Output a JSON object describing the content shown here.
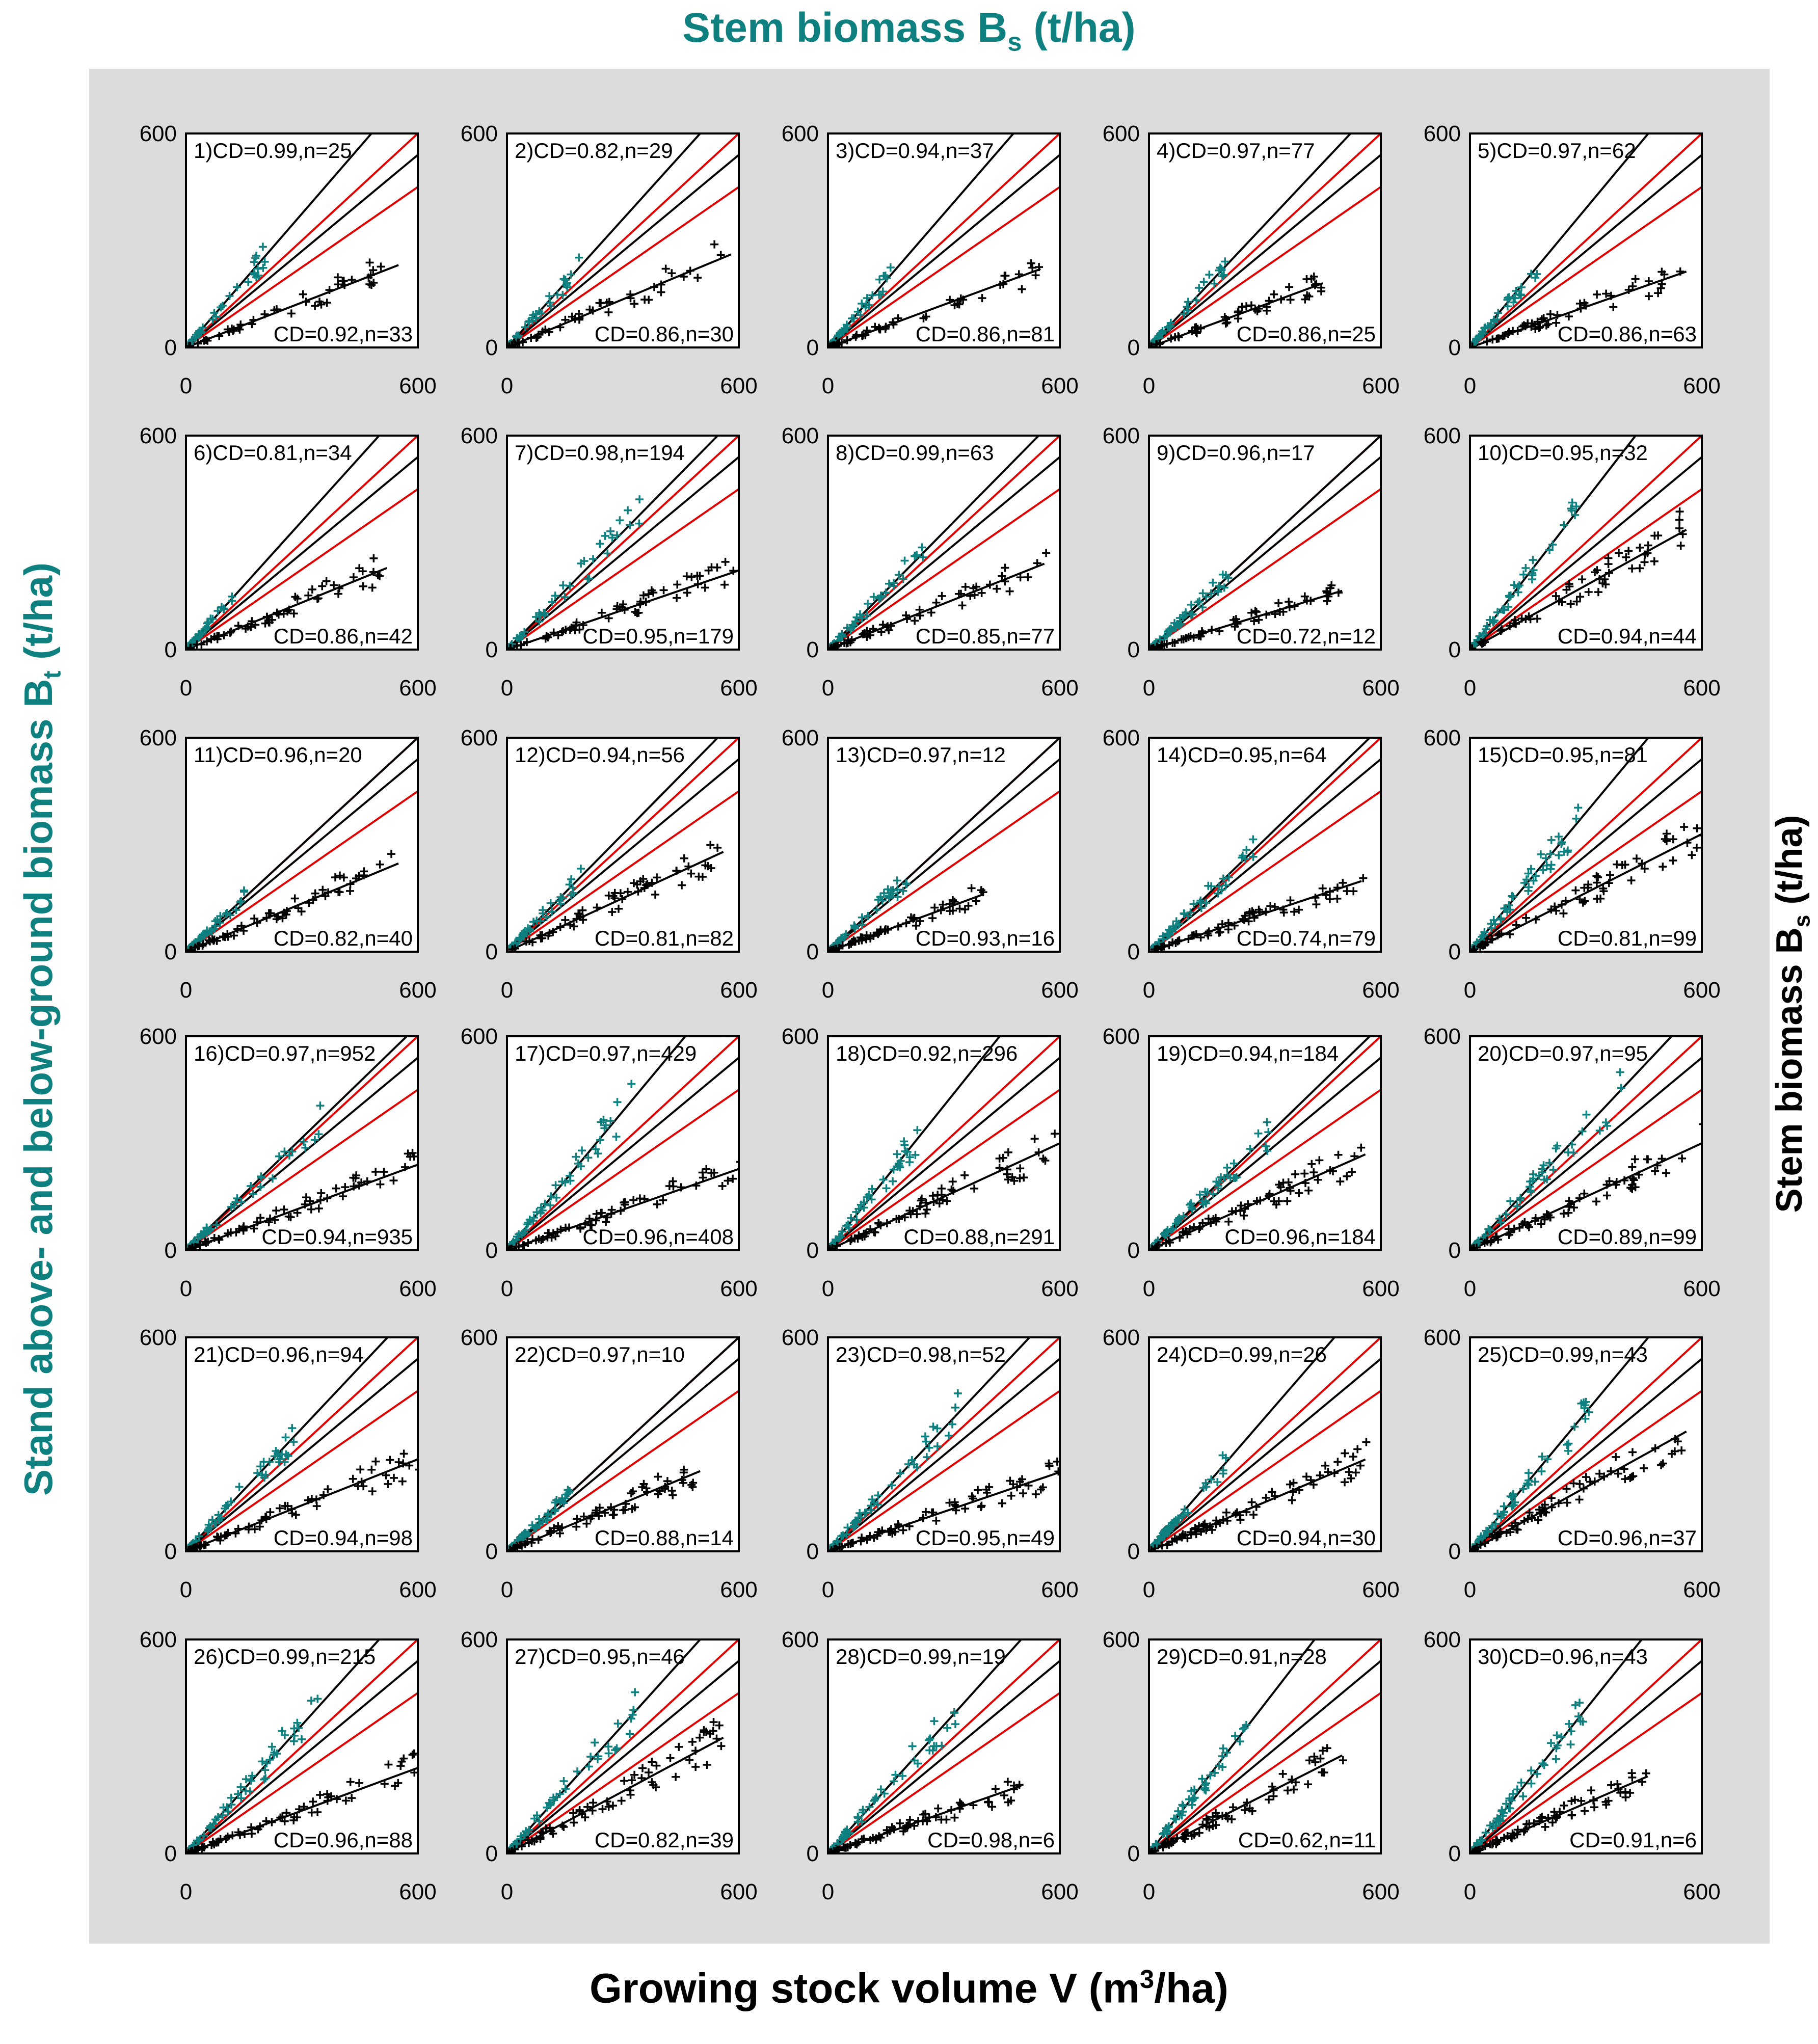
{
  "titles": {
    "top_main": "Stem biomass B",
    "top_sub": "s",
    "top_unit": " (t/ha)",
    "left_main": "Stand above- and below-ground biomass B",
    "left_sub": "t",
    "left_unit": " (t/ha)",
    "right_main": "Stem biomass B",
    "right_sub": "s",
    "right_unit": " (t/ha)",
    "bottom_main": "Growing stock volume V (m",
    "bottom_sup": "3",
    "bottom_unit": "/ha)"
  },
  "colors": {
    "background_panel": "#dcdcdc",
    "teal": "#0e8080",
    "black": "#000000",
    "red": "#e00000",
    "plot_bg": "#ffffff"
  },
  "chart_data": {
    "type": "scatter",
    "axis": {
      "xlim": [
        0,
        600
      ],
      "ylim": [
        0,
        600
      ],
      "x_ticks": [
        "0",
        "600"
      ],
      "y_ticks": [
        "0",
        "600"
      ]
    },
    "reference_lines": [
      {
        "color": "red",
        "slope": 1.0
      },
      {
        "color": "red",
        "slope": 0.75
      },
      {
        "color": "black",
        "slope": 0.9
      }
    ],
    "panels": [
      {
        "id": 1,
        "label_top": "1)CD=0.99,n=25",
        "label_bottom": "CD=0.92,n=33",
        "teal_slope": 1.25,
        "black_slope": 0.42,
        "teal_max": 250,
        "black_max": 550
      },
      {
        "id": 2,
        "label_top": "2)CD=0.82,n=29",
        "label_bottom": "CD=0.86,n=30",
        "teal_slope": 1.2,
        "black_slope": 0.45,
        "teal_max": 220,
        "black_max": 580
      },
      {
        "id": 3,
        "label_top": "3)CD=0.94,n=37",
        "label_bottom": "CD=0.86,n=81",
        "teal_slope": 1.25,
        "black_slope": 0.4,
        "teal_max": 200,
        "black_max": 550
      },
      {
        "id": 4,
        "label_top": "4)CD=0.97,n=77",
        "label_bottom": "CD=0.86,n=25",
        "teal_slope": 1.15,
        "black_slope": 0.4,
        "teal_max": 230,
        "black_max": 450
      },
      {
        "id": 5,
        "label_top": "5)CD=0.97,n=62",
        "label_bottom": "CD=0.86,n=63",
        "teal_slope": 1.3,
        "black_slope": 0.38,
        "teal_max": 230,
        "black_max": 560
      },
      {
        "id": 6,
        "label_top": "6)CD=0.81,n=34",
        "label_bottom": "CD=0.86,n=42",
        "teal_slope": 1.2,
        "black_slope": 0.44,
        "teal_max": 140,
        "black_max": 520
      },
      {
        "id": 7,
        "label_top": "7)CD=0.98,n=194",
        "label_bottom": "CD=0.95,n=179",
        "teal_slope": 1.1,
        "black_slope": 0.37,
        "teal_max": 380,
        "black_max": 600
      },
      {
        "id": 8,
        "label_top": "8)CD=0.99,n=63",
        "label_bottom": "CD=0.85,n=77",
        "teal_slope": 1.1,
        "black_slope": 0.43,
        "teal_max": 290,
        "black_max": 560
      },
      {
        "id": 9,
        "label_top": "9)CD=0.96,n=17",
        "label_bottom": "CD=0.72,n=12",
        "teal_slope": 1.0,
        "black_slope": 0.33,
        "teal_max": 200,
        "black_max": 500
      },
      {
        "id": 10,
        "label_top": "10)CD=0.95,n=32",
        "label_bottom": "CD=0.94,n=44",
        "teal_slope": 1.4,
        "black_slope": 0.6,
        "teal_max": 400,
        "black_max": 560
      },
      {
        "id": 11,
        "label_top": "11)CD=0.96,n=20",
        "label_bottom": "CD=0.82,n=40",
        "teal_slope": 1.0,
        "black_slope": 0.45,
        "teal_max": 150,
        "black_max": 550
      },
      {
        "id": 12,
        "label_top": "12)CD=0.94,n=56",
        "label_bottom": "CD=0.81,n=82",
        "teal_slope": 1.1,
        "black_slope": 0.5,
        "teal_max": 230,
        "black_max": 560
      },
      {
        "id": 13,
        "label_top": "13)CD=0.97,n=12",
        "label_bottom": "CD=0.93,n=16",
        "teal_slope": 1.0,
        "black_slope": 0.4,
        "teal_max": 200,
        "black_max": 400
      },
      {
        "id": 14,
        "label_top": "14)CD=0.95,n=64",
        "label_bottom": "CD=0.74,n=79",
        "teal_slope": 1.05,
        "black_slope": 0.36,
        "teal_max": 300,
        "black_max": 550
      },
      {
        "id": 15,
        "label_top": "15)CD=0.95,n=81",
        "label_bottom": "CD=0.81,n=99",
        "teal_slope": 1.3,
        "black_slope": 0.55,
        "teal_max": 360,
        "black_max": 600
      },
      {
        "id": 16,
        "label_top": "16)CD=0.97,n=952",
        "label_bottom": "CD=0.94,n=935",
        "teal_slope": 1.05,
        "black_slope": 0.4,
        "teal_max": 360,
        "black_max": 600
      },
      {
        "id": 17,
        "label_top": "17)CD=0.97,n=429",
        "label_bottom": "CD=0.96,n=408",
        "teal_slope": 1.3,
        "black_slope": 0.38,
        "teal_max": 430,
        "black_max": 600
      },
      {
        "id": 18,
        "label_top": "18)CD=0.92,n=296",
        "label_bottom": "CD=0.88,n=291",
        "teal_slope": 1.35,
        "black_slope": 0.5,
        "teal_max": 310,
        "black_max": 600
      },
      {
        "id": 19,
        "label_top": "19)CD=0.94,n=184",
        "label_bottom": "CD=0.96,n=184",
        "teal_slope": 1.05,
        "black_slope": 0.48,
        "teal_max": 320,
        "black_max": 560
      },
      {
        "id": 20,
        "label_top": "20)CD=0.97,n=95",
        "label_bottom": "CD=0.89,n=99",
        "teal_slope": 1.15,
        "black_slope": 0.5,
        "teal_max": 450,
        "black_max": 600
      },
      {
        "id": 21,
        "label_top": "21)CD=0.96,n=94",
        "label_bottom": "CD=0.94,n=98",
        "teal_slope": 1.15,
        "black_slope": 0.43,
        "teal_max": 330,
        "black_max": 600
      },
      {
        "id": 22,
        "label_top": "22)CD=0.97,n=10",
        "label_bottom": "CD=0.88,n=14",
        "teal_slope": 1.0,
        "black_slope": 0.45,
        "teal_max": 160,
        "black_max": 500
      },
      {
        "id": 23,
        "label_top": "23)CD=0.98,n=52",
        "label_bottom": "CD=0.95,n=49",
        "teal_slope": 1.15,
        "black_slope": 0.37,
        "teal_max": 390,
        "black_max": 600
      },
      {
        "id": 24,
        "label_top": "24)CD=0.99,n=26",
        "label_bottom": "CD=0.94,n=30",
        "teal_slope": 1.25,
        "black_slope": 0.46,
        "teal_max": 260,
        "black_max": 560
      },
      {
        "id": 25,
        "label_top": "25)CD=0.99,n=43",
        "label_bottom": "CD=0.96,n=37",
        "teal_slope": 1.3,
        "black_slope": 0.6,
        "teal_max": 400,
        "black_max": 560
      },
      {
        "id": 26,
        "label_top": "26)CD=0.99,n=215",
        "label_bottom": "CD=0.96,n=88",
        "teal_slope": 1.2,
        "black_slope": 0.4,
        "teal_max": 430,
        "black_max": 600
      },
      {
        "id": 27,
        "label_top": "27)CD=0.95,n=46",
        "label_bottom": "CD=0.82,n=39",
        "teal_slope": 1.2,
        "black_slope": 0.58,
        "teal_max": 400,
        "black_max": 560
      },
      {
        "id": 28,
        "label_top": "28)CD=0.99,n=19",
        "label_bottom": "CD=0.98,n=6",
        "teal_slope": 1.2,
        "black_slope": 0.38,
        "teal_max": 400,
        "black_max": 500
      },
      {
        "id": 29,
        "label_top": "29)CD=0.91,n=28",
        "label_bottom": "CD=0.62,n=11",
        "teal_slope": 1.4,
        "black_slope": 0.55,
        "teal_max": 350,
        "black_max": 500
      },
      {
        "id": 30,
        "label_top": "30)CD=0.96,n=43",
        "label_bottom": "CD=0.91,n=6",
        "teal_slope": 1.35,
        "black_slope": 0.47,
        "teal_max": 390,
        "black_max": 460
      }
    ]
  }
}
